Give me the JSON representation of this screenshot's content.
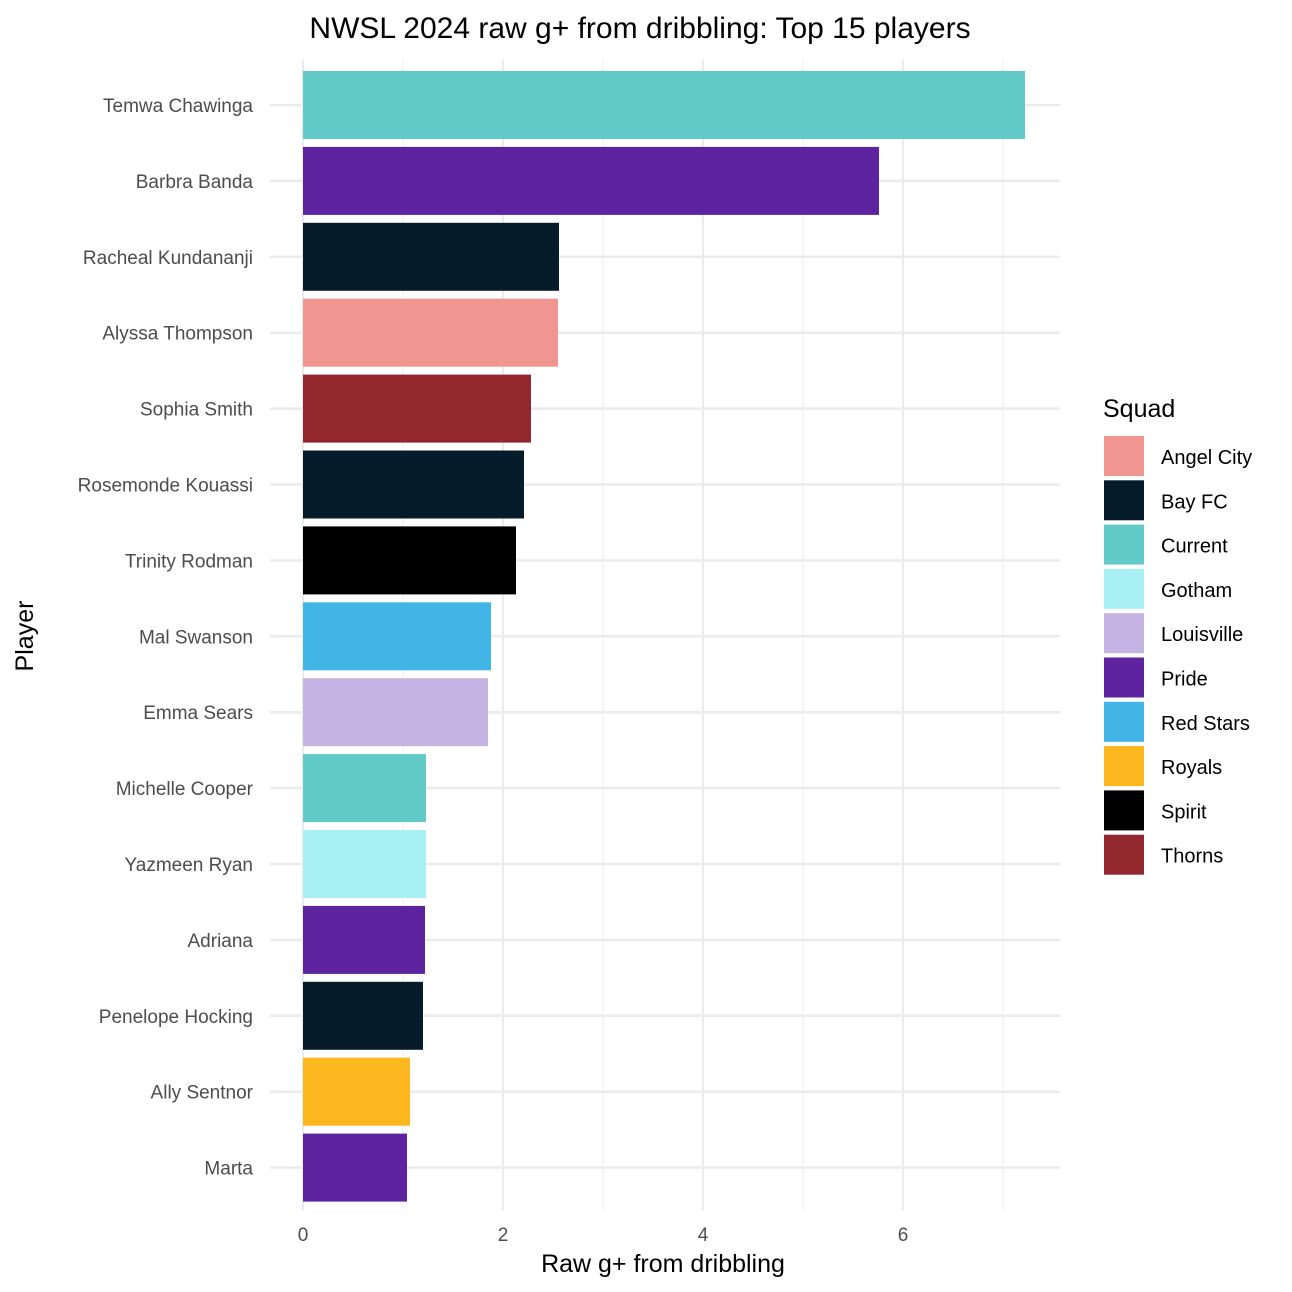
{
  "chart_data": {
    "type": "bar",
    "orientation": "horizontal",
    "title": "NWSL 2024 raw g+ from dribbling: Top 15 players",
    "xlabel": "Raw g+ from dribbling",
    "ylabel": "Player",
    "xlim": [
      0,
      7.5
    ],
    "xticks": [
      "0",
      "2",
      "4",
      "6"
    ],
    "grid": true,
    "legend_position": "right",
    "legend_title": "Squad",
    "squads": [
      {
        "name": "Angel City",
        "color": "#F0958F"
      },
      {
        "name": "Bay FC",
        "color": "#061C2B"
      },
      {
        "name": "Current",
        "color": "#62CBC8"
      },
      {
        "name": "Gotham",
        "color": "#A9F0F4"
      },
      {
        "name": "Louisville",
        "color": "#C5B3E4"
      },
      {
        "name": "Pride",
        "color": "#5E24A0"
      },
      {
        "name": "Red Stars",
        "color": "#41B6E6"
      },
      {
        "name": "Royals",
        "color": "#FDB71E"
      },
      {
        "name": "Spirit",
        "color": "#000000"
      },
      {
        "name": "Thorns",
        "color": "#92282E"
      }
    ],
    "bars": [
      {
        "player": "Temwa Chawinga",
        "value": 7.22,
        "squad": "Current"
      },
      {
        "player": "Barbra Banda",
        "value": 5.76,
        "squad": "Pride"
      },
      {
        "player": "Racheal Kundananji",
        "value": 2.56,
        "squad": "Bay FC"
      },
      {
        "player": "Alyssa Thompson",
        "value": 2.55,
        "squad": "Angel City"
      },
      {
        "player": "Sophia Smith",
        "value": 2.28,
        "squad": "Thorns"
      },
      {
        "player": "Rosemonde Kouassi",
        "value": 2.21,
        "squad": "Bay FC"
      },
      {
        "player": "Trinity Rodman",
        "value": 2.13,
        "squad": "Spirit"
      },
      {
        "player": "Mal Swanson",
        "value": 1.88,
        "squad": "Red Stars"
      },
      {
        "player": "Emma Sears",
        "value": 1.85,
        "squad": "Louisville"
      },
      {
        "player": "Michelle Cooper",
        "value": 1.23,
        "squad": "Current"
      },
      {
        "player": "Yazmeen Ryan",
        "value": 1.23,
        "squad": "Gotham"
      },
      {
        "player": "Adriana",
        "value": 1.22,
        "squad": "Pride"
      },
      {
        "player": "Penelope Hocking",
        "value": 1.2,
        "squad": "Bay FC"
      },
      {
        "player": "Ally Sentnor",
        "value": 1.07,
        "squad": "Royals"
      },
      {
        "player": "Marta",
        "value": 1.04,
        "squad": "Pride"
      }
    ]
  }
}
